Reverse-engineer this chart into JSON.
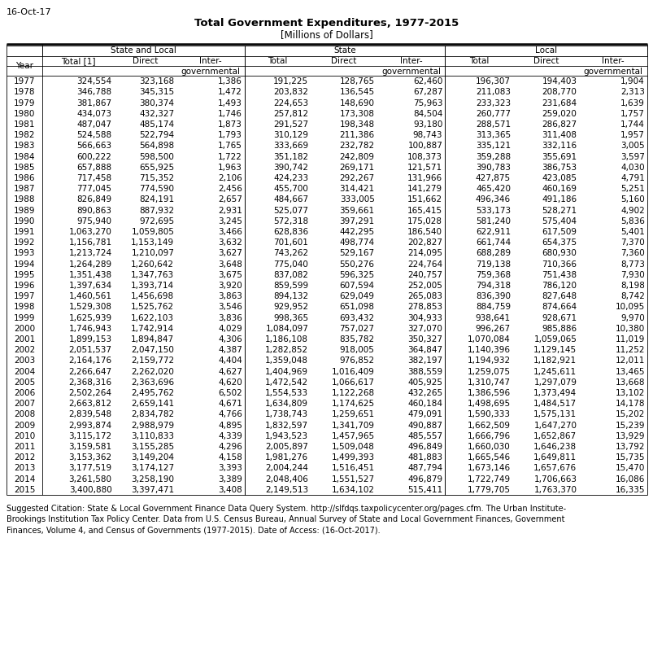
{
  "date_label": "16-Oct-17",
  "title": "Total Government Expenditures, 1977-2015",
  "subtitle": "[Millions of Dollars]",
  "citation": "Suggested Citation: State & Local Government Finance Data Query System. http://slfdqs.taxpolicycenter.org/pages.cfm. The Urban Institute-\nBrookings Institution Tax Policy Center. Data from U.S. Census Bureau, Annual Survey of State and Local Government Finances, Government\nFinances, Volume 4, and Census of Governments (1977-2015). Date of Access: (16-Oct-2017).",
  "rows": [
    [
      1977,
      "324,554",
      "323,168",
      "1,386",
      "191,225",
      "128,765",
      "62,460",
      "196,307",
      "194,403",
      "1,904"
    ],
    [
      1978,
      "346,788",
      "345,315",
      "1,472",
      "203,832",
      "136,545",
      "67,287",
      "211,083",
      "208,770",
      "2,313"
    ],
    [
      1979,
      "381,867",
      "380,374",
      "1,493",
      "224,653",
      "148,690",
      "75,963",
      "233,323",
      "231,684",
      "1,639"
    ],
    [
      1980,
      "434,073",
      "432,327",
      "1,746",
      "257,812",
      "173,308",
      "84,504",
      "260,777",
      "259,020",
      "1,757"
    ],
    [
      1981,
      "487,047",
      "485,174",
      "1,873",
      "291,527",
      "198,348",
      "93,180",
      "288,571",
      "286,827",
      "1,744"
    ],
    [
      1982,
      "524,588",
      "522,794",
      "1,793",
      "310,129",
      "211,386",
      "98,743",
      "313,365",
      "311,408",
      "1,957"
    ],
    [
      1983,
      "566,663",
      "564,898",
      "1,765",
      "333,669",
      "232,782",
      "100,887",
      "335,121",
      "332,116",
      "3,005"
    ],
    [
      1984,
      "600,222",
      "598,500",
      "1,722",
      "351,182",
      "242,809",
      "108,373",
      "359,288",
      "355,691",
      "3,597"
    ],
    [
      1985,
      "657,888",
      "655,925",
      "1,963",
      "390,742",
      "269,171",
      "121,571",
      "390,783",
      "386,753",
      "4,030"
    ],
    [
      1986,
      "717,458",
      "715,352",
      "2,106",
      "424,233",
      "292,267",
      "131,966",
      "427,875",
      "423,085",
      "4,791"
    ],
    [
      1987,
      "777,045",
      "774,590",
      "2,456",
      "455,700",
      "314,421",
      "141,279",
      "465,420",
      "460,169",
      "5,251"
    ],
    [
      1988,
      "826,849",
      "824,191",
      "2,657",
      "484,667",
      "333,005",
      "151,662",
      "496,346",
      "491,186",
      "5,160"
    ],
    [
      1989,
      "890,863",
      "887,932",
      "2,931",
      "525,077",
      "359,661",
      "165,415",
      "533,173",
      "528,271",
      "4,902"
    ],
    [
      1990,
      "975,940",
      "972,695",
      "3,245",
      "572,318",
      "397,291",
      "175,028",
      "581,240",
      "575,404",
      "5,836"
    ],
    [
      1991,
      "1,063,270",
      "1,059,805",
      "3,466",
      "628,836",
      "442,295",
      "186,540",
      "622,911",
      "617,509",
      "5,401"
    ],
    [
      1992,
      "1,156,781",
      "1,153,149",
      "3,632",
      "701,601",
      "498,774",
      "202,827",
      "661,744",
      "654,375",
      "7,370"
    ],
    [
      1993,
      "1,213,724",
      "1,210,097",
      "3,627",
      "743,262",
      "529,167",
      "214,095",
      "688,289",
      "680,930",
      "7,360"
    ],
    [
      1994,
      "1,264,289",
      "1,260,642",
      "3,648",
      "775,040",
      "550,276",
      "224,764",
      "719,138",
      "710,366",
      "8,773"
    ],
    [
      1995,
      "1,351,438",
      "1,347,763",
      "3,675",
      "837,082",
      "596,325",
      "240,757",
      "759,368",
      "751,438",
      "7,930"
    ],
    [
      1996,
      "1,397,634",
      "1,393,714",
      "3,920",
      "859,599",
      "607,594",
      "252,005",
      "794,318",
      "786,120",
      "8,198"
    ],
    [
      1997,
      "1,460,561",
      "1,456,698",
      "3,863",
      "894,132",
      "629,049",
      "265,083",
      "836,390",
      "827,648",
      "8,742"
    ],
    [
      1998,
      "1,529,308",
      "1,525,762",
      "3,546",
      "929,952",
      "651,098",
      "278,853",
      "884,759",
      "874,664",
      "10,095"
    ],
    [
      1999,
      "1,625,939",
      "1,622,103",
      "3,836",
      "998,365",
      "693,432",
      "304,933",
      "938,641",
      "928,671",
      "9,970"
    ],
    [
      2000,
      "1,746,943",
      "1,742,914",
      "4,029",
      "1,084,097",
      "757,027",
      "327,070",
      "996,267",
      "985,886",
      "10,380"
    ],
    [
      2001,
      "1,899,153",
      "1,894,847",
      "4,306",
      "1,186,108",
      "835,782",
      "350,327",
      "1,070,084",
      "1,059,065",
      "11,019"
    ],
    [
      2002,
      "2,051,537",
      "2,047,150",
      "4,387",
      "1,282,852",
      "918,005",
      "364,847",
      "1,140,396",
      "1,129,145",
      "11,252"
    ],
    [
      2003,
      "2,164,176",
      "2,159,772",
      "4,404",
      "1,359,048",
      "976,852",
      "382,197",
      "1,194,932",
      "1,182,921",
      "12,011"
    ],
    [
      2004,
      "2,266,647",
      "2,262,020",
      "4,627",
      "1,404,969",
      "1,016,409",
      "388,559",
      "1,259,075",
      "1,245,611",
      "13,465"
    ],
    [
      2005,
      "2,368,316",
      "2,363,696",
      "4,620",
      "1,472,542",
      "1,066,617",
      "405,925",
      "1,310,747",
      "1,297,079",
      "13,668"
    ],
    [
      2006,
      "2,502,264",
      "2,495,762",
      "6,502",
      "1,554,533",
      "1,122,268",
      "432,265",
      "1,386,596",
      "1,373,494",
      "13,102"
    ],
    [
      2007,
      "2,663,812",
      "2,659,141",
      "4,671",
      "1,634,809",
      "1,174,625",
      "460,184",
      "1,498,695",
      "1,484,517",
      "14,178"
    ],
    [
      2008,
      "2,839,548",
      "2,834,782",
      "4,766",
      "1,738,743",
      "1,259,651",
      "479,091",
      "1,590,333",
      "1,575,131",
      "15,202"
    ],
    [
      2009,
      "2,993,874",
      "2,988,979",
      "4,895",
      "1,832,597",
      "1,341,709",
      "490,887",
      "1,662,509",
      "1,647,270",
      "15,239"
    ],
    [
      2010,
      "3,115,172",
      "3,110,833",
      "4,339",
      "1,943,523",
      "1,457,965",
      "485,557",
      "1,666,796",
      "1,652,867",
      "13,929"
    ],
    [
      2011,
      "3,159,581",
      "3,155,285",
      "4,296",
      "2,005,897",
      "1,509,048",
      "496,849",
      "1,660,030",
      "1,646,238",
      "13,792"
    ],
    [
      2012,
      "3,153,362",
      "3,149,204",
      "4,158",
      "1,981,276",
      "1,499,393",
      "481,883",
      "1,665,546",
      "1,649,811",
      "15,735"
    ],
    [
      2013,
      "3,177,519",
      "3,174,127",
      "3,393",
      "2,004,244",
      "1,516,451",
      "487,794",
      "1,673,146",
      "1,657,676",
      "15,470"
    ],
    [
      2014,
      "3,261,580",
      "3,258,190",
      "3,389",
      "2,048,406",
      "1,551,527",
      "496,879",
      "1,722,749",
      "1,706,663",
      "16,086"
    ],
    [
      2015,
      "3,400,880",
      "3,397,471",
      "3,408",
      "2,149,513",
      "1,634,102",
      "515,411",
      "1,779,705",
      "1,763,370",
      "16,335"
    ]
  ]
}
